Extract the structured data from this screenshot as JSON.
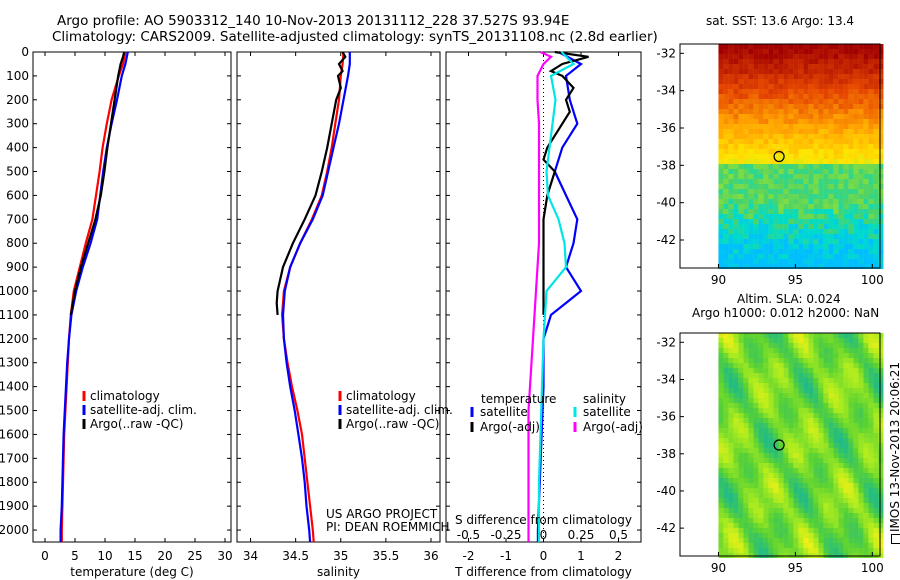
{
  "header": {
    "line1": "Argo profile: AO 5903312_140 10-Nov-2013 20131112_228 37.527S 93.94E",
    "line2": "Climatology: CARS2009. Satellite-adjusted climatology: synTS_20131108.nc (2.8d earlier)"
  },
  "credits": {
    "project": "US ARGO PROJECT",
    "pi": "PI: DEAN ROEMMICH",
    "stamp": "IMOS 13-Nov-2013 20:06:21"
  },
  "map_titles": {
    "sst": "sat. SST: 13.6 Argo: 13.4",
    "sla_line1": "Altim. SLA: 0.024",
    "sla_line2": "Argo h1000: 0.012 h2000: NaN"
  },
  "colors": {
    "climatology": "#ff0000",
    "satellite": "#0000ff",
    "argo": "#000000",
    "salinity_satellite": "#00e5e5",
    "salinity_argo": "#ff00ff"
  },
  "chart_data": [
    {
      "type": "line",
      "xlabel": "temperature (deg C)",
      "ylabel": "",
      "xlim": [
        -2,
        31
      ],
      "ylim": [
        2050,
        0
      ],
      "xticks": [
        "0",
        "5",
        "10",
        "15",
        "20",
        "25",
        "30"
      ],
      "yticks": [
        "0",
        "100",
        "200",
        "300",
        "400",
        "500",
        "600",
        "700",
        "800",
        "900",
        "1000",
        "1100",
        "1200",
        "1300",
        "1400",
        "1500",
        "1600",
        "1700",
        "1800",
        "1900",
        "2000"
      ],
      "legend": [
        "climatology",
        "satellite-adj. clim.",
        "Argo(..raw -QC)"
      ],
      "series": [
        {
          "name": "climatology",
          "depth": [
            0,
            50,
            100,
            200,
            300,
            400,
            500,
            600,
            700,
            800,
            900,
            1000,
            1100,
            1200,
            1300,
            1400,
            1500,
            1600,
            1700,
            1800,
            1900,
            2000,
            2050
          ],
          "values": [
            13.4,
            13,
            12.3,
            11.1,
            10.3,
            9.6,
            9.1,
            8.5,
            7.9,
            6.8,
            5.8,
            4.8,
            4.3,
            4.0,
            3.8,
            3.6,
            3.4,
            3.2,
            3.1,
            3.0,
            2.9,
            2.8,
            2.8
          ]
        },
        {
          "name": "satellite-adj. clim.",
          "depth": [
            0,
            50,
            100,
            200,
            300,
            400,
            500,
            600,
            700,
            800,
            900,
            1000,
            1100,
            1200,
            1300,
            1400,
            1500,
            1600,
            1700,
            1800,
            1900,
            2000,
            2050
          ],
          "values": [
            13.8,
            13.4,
            12.8,
            12.0,
            11.1,
            10.3,
            9.7,
            9.2,
            8.7,
            7.6,
            6.3,
            5.2,
            4.4,
            4.0,
            3.7,
            3.5,
            3.3,
            3.1,
            3.0,
            2.9,
            2.8,
            2.6,
            2.6
          ]
        },
        {
          "name": "Argo(..raw -QC)",
          "depth": [
            0,
            20,
            50,
            100,
            150,
            200,
            300,
            400,
            500,
            600,
            700,
            800,
            900,
            1000,
            1100
          ],
          "values": [
            13.2,
            13.0,
            12.6,
            12.2,
            11.9,
            11.6,
            11.0,
            10.4,
            9.9,
            9.3,
            8.4,
            7.2,
            6.0,
            5.0,
            4.3
          ]
        }
      ]
    },
    {
      "type": "line",
      "xlabel": "salinity",
      "ylabel": "",
      "xlim": [
        33.85,
        36.1
      ],
      "ylim": [
        2050,
        0
      ],
      "xticks": [
        "34",
        "34.5",
        "35",
        "35.5",
        "36"
      ],
      "legend": [
        "climatology",
        "satellite-adj. clim.",
        "Argo(..raw -QC)"
      ],
      "series": [
        {
          "name": "climatology",
          "depth": [
            0,
            50,
            100,
            200,
            300,
            400,
            500,
            600,
            700,
            800,
            900,
            1000,
            1100,
            1200,
            1300,
            1400,
            1500,
            1600,
            1700,
            1800,
            1900,
            2000,
            2050
          ],
          "values": [
            35.03,
            35.02,
            35.0,
            34.98,
            34.94,
            34.9,
            34.85,
            34.79,
            34.68,
            34.55,
            34.44,
            34.37,
            34.35,
            34.37,
            34.41,
            34.46,
            34.52,
            34.57,
            34.6,
            34.63,
            34.66,
            34.69,
            34.7
          ]
        },
        {
          "name": "satellite-adj. clim.",
          "depth": [
            0,
            50,
            100,
            200,
            300,
            400,
            500,
            600,
            700,
            800,
            900,
            1000,
            1100,
            1200,
            1300,
            1400,
            1500,
            1600,
            1700,
            1800,
            1900,
            2000,
            2050
          ],
          "values": [
            35.1,
            35.1,
            35.08,
            35.03,
            34.98,
            34.92,
            34.86,
            34.8,
            34.69,
            34.55,
            34.44,
            34.38,
            34.36,
            34.37,
            34.4,
            34.44,
            34.49,
            34.53,
            34.57,
            34.6,
            34.62,
            34.65,
            34.66
          ]
        },
        {
          "name": "Argo(..raw -QC)",
          "depth": [
            0,
            20,
            50,
            80,
            100,
            150,
            200,
            300,
            400,
            500,
            600,
            700,
            800,
            900,
            1000,
            1050,
            1100
          ],
          "values": [
            35.02,
            35.05,
            34.98,
            35.02,
            34.97,
            35.0,
            34.95,
            34.9,
            34.85,
            34.79,
            34.72,
            34.6,
            34.47,
            34.36,
            34.3,
            34.29,
            34.3
          ]
        }
      ]
    },
    {
      "type": "line",
      "xlabel": "T difference from climatology",
      "ylabel": "",
      "xlim": [
        -2.6,
        2.6
      ],
      "ylim": [
        2050,
        0
      ],
      "xticks": [
        "-2",
        "-1",
        "0",
        "1",
        "2"
      ],
      "secondary_xlabel": "S difference from climatology",
      "secondary_xticks": [
        "-0.5",
        "-0.25",
        "0",
        "0.25",
        "0.5"
      ],
      "legend_groups": [
        "temperature",
        "salinity"
      ],
      "legend": [
        "satellite",
        "Argo(-adj)",
        "satellite",
        "Argo(-adj)"
      ],
      "series": [
        {
          "name": "satellite",
          "group": "temperature",
          "depth": [
            0,
            50,
            100,
            200,
            300,
            400,
            500,
            600,
            700,
            800,
            900,
            950,
            1000,
            1050,
            1100,
            1200,
            1400,
            1600,
            1800,
            2000,
            2050
          ],
          "values": [
            0.4,
            1.0,
            0.6,
            0.7,
            0.9,
            0.5,
            0.3,
            0.6,
            0.9,
            0.8,
            0.6,
            0.8,
            1.0,
            0.6,
            0.2,
            0.0,
            0.0,
            -0.05,
            -0.1,
            -0.15,
            -0.15
          ]
        },
        {
          "name": "Argo(-adj)",
          "group": "temperature",
          "depth": [
            0,
            20,
            50,
            80,
            100,
            150,
            200,
            250,
            300,
            400,
            450,
            500,
            600,
            700,
            800,
            900,
            1000,
            1100
          ],
          "values": [
            0.3,
            1.2,
            0.5,
            0.2,
            0.5,
            0.8,
            0.6,
            0.7,
            0.5,
            0.1,
            0.0,
            0.3,
            0.1,
            0.0,
            0.0,
            0.0,
            0.0,
            0.0
          ]
        },
        {
          "name": "satellite",
          "group": "salinity",
          "depth": [
            0,
            50,
            100,
            200,
            300,
            400,
            500,
            600,
            700,
            800,
            900,
            1000,
            1200,
            1400,
            1600,
            1800,
            2000,
            2050
          ],
          "values": [
            0.12,
            0.2,
            0.05,
            0.08,
            0.06,
            0.04,
            0.02,
            0.03,
            0.1,
            0.14,
            0.15,
            0.02,
            0.0,
            -0.01,
            -0.02,
            -0.03,
            -0.03,
            -0.03
          ]
        },
        {
          "name": "Argo(-adj)",
          "group": "salinity",
          "depth": [
            0,
            20,
            50,
            100,
            200,
            300,
            400,
            500,
            600,
            700,
            800,
            900,
            1000,
            1100,
            1200,
            1300,
            1400,
            1500,
            1600,
            1800,
            2000,
            2050
          ],
          "values": [
            -0.02,
            0.05,
            0.0,
            -0.04,
            -0.04,
            -0.03,
            -0.03,
            -0.03,
            -0.03,
            -0.03,
            -0.03,
            -0.04,
            -0.05,
            -0.06,
            -0.07,
            -0.08,
            -0.09,
            -0.1,
            -0.1,
            -0.1,
            -0.1,
            -0.1
          ]
        }
      ]
    },
    {
      "type": "heatmap",
      "title": "sat. SST: 13.6 Argo: 13.4",
      "xlim": [
        87.5,
        100.5
      ],
      "ylim": [
        -43.5,
        -31.5
      ],
      "xticks": [
        "90",
        "95",
        "100"
      ],
      "yticks": [
        "-32",
        "-34",
        "-36",
        "-38",
        "-40",
        "-42"
      ],
      "float_position": {
        "lon": 93.94,
        "lat": -37.527
      },
      "no_data_west_of": 90
    },
    {
      "type": "heatmap",
      "title": "Altim. SLA: 0.024",
      "subtitle": "Argo h1000: 0.012 h2000: NaN",
      "xlim": [
        87.5,
        100.5
      ],
      "ylim": [
        -43.5,
        -31.5
      ],
      "xticks": [
        "90",
        "95",
        "100"
      ],
      "yticks": [
        "-32",
        "-34",
        "-36",
        "-38",
        "-40",
        "-42"
      ],
      "float_position": {
        "lon": 93.94,
        "lat": -37.527
      },
      "no_data_west_of": 90
    }
  ]
}
